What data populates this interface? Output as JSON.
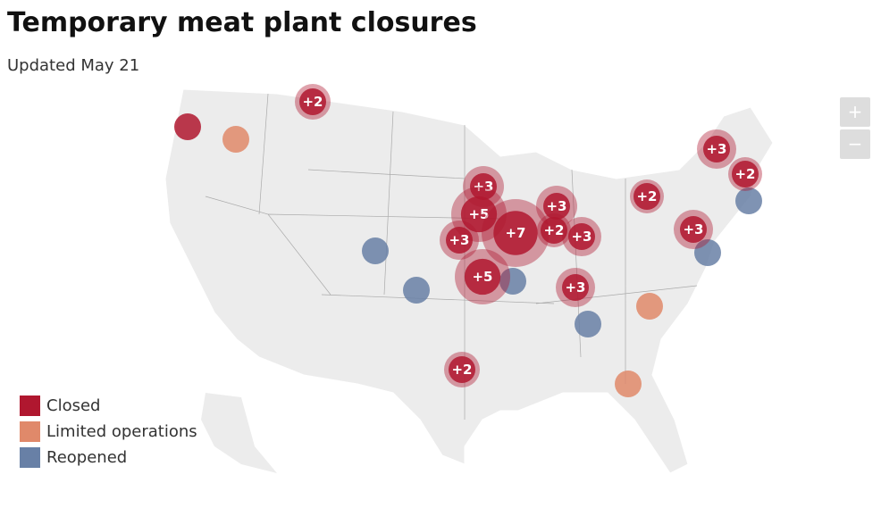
{
  "header": {
    "title": "Temporary meat plant closures",
    "subtitle": "Updated May 21"
  },
  "controls": {
    "zoom_in": "+",
    "zoom_out": "−"
  },
  "legend": {
    "items": [
      {
        "label": "Closed",
        "color": "#b0172f"
      },
      {
        "label": "Limited operations",
        "color": "#e0896a"
      },
      {
        "label": "Reopened",
        "color": "#6880a6"
      }
    ]
  },
  "cluster_labels": [
    "+2",
    "+3",
    "+2",
    "+3",
    "+5",
    "+3",
    "+2",
    "+7",
    "+2",
    "+3",
    "+3",
    "+3",
    "+5",
    "+3",
    "+2"
  ]
}
